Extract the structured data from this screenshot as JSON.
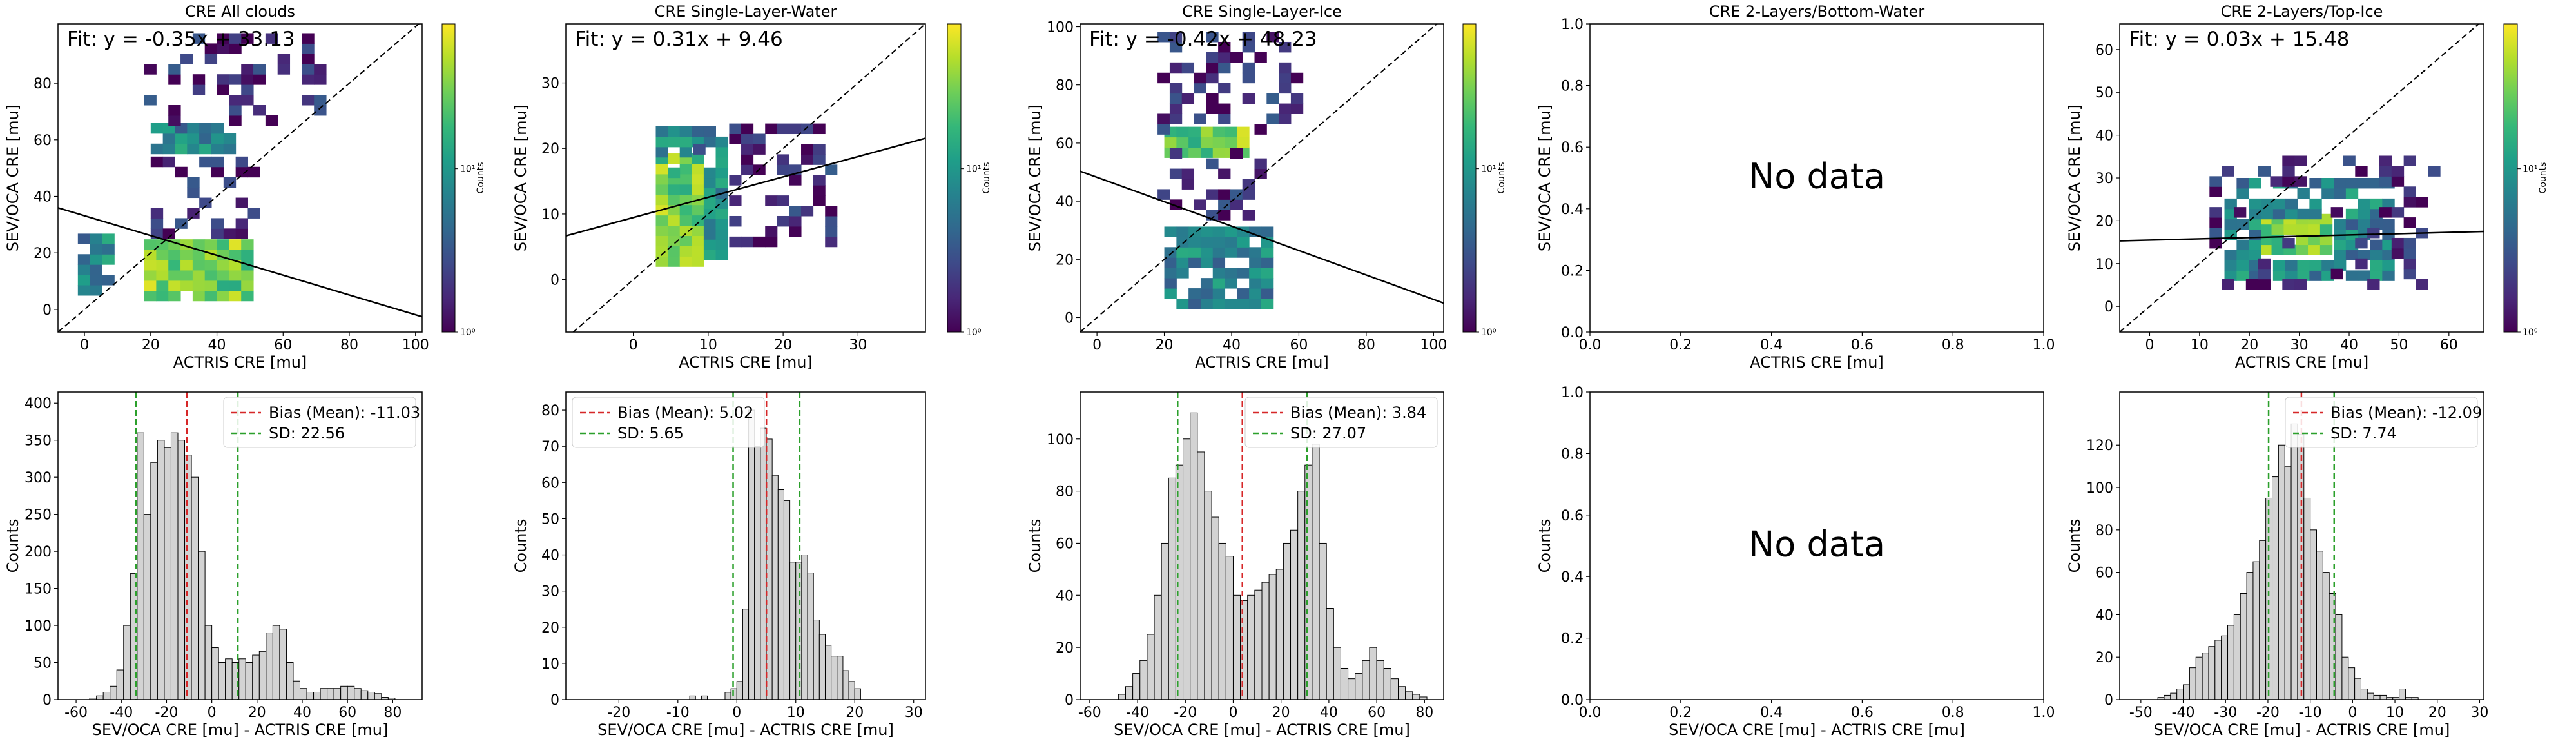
{
  "figure": {
    "labels": {
      "xlabel_scatter": "ACTRIS CRE [mu]",
      "ylabel_scatter": "SEV/OCA CRE [mu]",
      "xlabel_hist": "SEV/OCA CRE [mu] - ACTRIS CRE [mu]",
      "ylabel_hist": "Counts",
      "colorbar_label": "Counts",
      "no_data": "No data"
    },
    "colors": {
      "bar_fill": "#d3d3d3",
      "bar_edge": "#000000",
      "bias_line": "#d62728",
      "sd_line": "#2ca02c",
      "fit_line": "#000000",
      "diag_line": "#000000"
    }
  },
  "chart_data": [
    {
      "type": "heatmap",
      "title": "CRE All clouds",
      "fit_label": "Fit: y = -0.35x + 33.13",
      "fit": {
        "slope": -0.35,
        "intercept": 33.13
      },
      "xlim": [
        -8,
        102
      ],
      "ylim": [
        -8,
        101
      ],
      "xticks": [
        0,
        20,
        40,
        60,
        80,
        100
      ],
      "yticks": [
        0,
        20,
        40,
        60,
        80
      ],
      "colorbar": {
        "ticks": [
          "10⁰",
          "10¹"
        ],
        "label": "Counts",
        "scale": "log"
      },
      "dense_regions": [
        {
          "x": [
            18,
            50
          ],
          "y": [
            3,
            24
          ],
          "density": "high"
        },
        {
          "x": [
            20,
            45
          ],
          "y": [
            55,
            63
          ],
          "density": "medium"
        },
        {
          "x": [
            -2,
            8
          ],
          "y": [
            5,
            24
          ],
          "density": "medium"
        },
        {
          "x": [
            20,
            50
          ],
          "y": [
            25,
            55
          ],
          "density": "low"
        },
        {
          "x": [
            18,
            70
          ],
          "y": [
            65,
            95
          ],
          "density": "low"
        }
      ]
    },
    {
      "type": "heatmap",
      "title": "CRE Single-Layer-Water",
      "fit_label": "Fit: y = 0.31x + 9.46",
      "fit": {
        "slope": 0.31,
        "intercept": 9.46
      },
      "xlim": [
        -9,
        39
      ],
      "ylim": [
        -8,
        39
      ],
      "xticks": [
        0,
        10,
        20,
        30
      ],
      "yticks": [
        0,
        10,
        20,
        30
      ],
      "colorbar": {
        "ticks": [
          "10⁰",
          "10¹"
        ],
        "label": "Counts",
        "scale": "log"
      },
      "dense_regions": [
        {
          "x": [
            3,
            9
          ],
          "y": [
            2,
            18
          ],
          "density": "high"
        },
        {
          "x": [
            3,
            12
          ],
          "y": [
            3,
            23
          ],
          "density": "medium"
        },
        {
          "x": [
            8,
            26
          ],
          "y": [
            5,
            23
          ],
          "density": "low"
        }
      ]
    },
    {
      "type": "heatmap",
      "title": "CRE Single-Layer-Ice",
      "fit_label": "Fit: y = -0.42x + 48.23",
      "fit": {
        "slope": -0.42,
        "intercept": 48.23
      },
      "xlim": [
        -5,
        103
      ],
      "ylim": [
        -5,
        101
      ],
      "xticks": [
        0,
        20,
        40,
        60,
        80,
        100
      ],
      "yticks": [
        0,
        20,
        40,
        60,
        80,
        100
      ],
      "colorbar": {
        "ticks": [
          "10⁰",
          "10¹"
        ],
        "label": "Counts",
        "scale": "log"
      },
      "dense_regions": [
        {
          "x": [
            20,
            50
          ],
          "y": [
            3,
            30
          ],
          "density": "medium"
        },
        {
          "x": [
            20,
            45
          ],
          "y": [
            55,
            63
          ],
          "density": "high"
        },
        {
          "x": [
            18,
            50
          ],
          "y": [
            30,
            55
          ],
          "density": "low"
        },
        {
          "x": [
            18,
            60
          ],
          "y": [
            63,
            95
          ],
          "density": "low"
        }
      ]
    },
    {
      "type": "scatter",
      "title": "CRE 2-Layers/Bottom-Water",
      "empty": true,
      "xlim": [
        0,
        1
      ],
      "ylim": [
        0,
        1
      ],
      "xticks": [
        "0.0",
        "0.2",
        "0.4",
        "0.6",
        "0.8",
        "1.0"
      ],
      "yticks": [
        "0.0",
        "0.2",
        "0.4",
        "0.6",
        "0.8",
        "1.0"
      ],
      "annotation": "No data"
    },
    {
      "type": "heatmap",
      "title": "CRE 2-Layers/Top-Ice",
      "fit_label": "Fit: y = 0.03x + 15.48",
      "fit": {
        "slope": 0.03,
        "intercept": 15.48
      },
      "xlim": [
        -6,
        67
      ],
      "ylim": [
        -6,
        66
      ],
      "xticks": [
        0,
        10,
        20,
        30,
        40,
        50,
        60
      ],
      "yticks": [
        0,
        10,
        20,
        30,
        40,
        50,
        60
      ],
      "colorbar": {
        "ticks": [
          "10⁰",
          "10¹"
        ],
        "label": "Counts",
        "scale": "log"
      },
      "dense_regions": [
        {
          "x": [
            22,
            36
          ],
          "y": [
            12,
            20
          ],
          "density": "high"
        },
        {
          "x": [
            15,
            48
          ],
          "y": [
            6,
            28
          ],
          "density": "medium"
        },
        {
          "x": [
            12,
            56
          ],
          "y": [
            4,
            33
          ],
          "density": "low"
        }
      ]
    },
    {
      "type": "bar",
      "title": "",
      "xlim": [
        -68,
        93
      ],
      "ylim": [
        0,
        415
      ],
      "xticks": [
        -60,
        -40,
        -20,
        0,
        20,
        40,
        60,
        80
      ],
      "yticks": [
        0,
        50,
        100,
        150,
        200,
        250,
        300,
        350,
        400
      ],
      "bin_start": -54,
      "bin_width": 3,
      "values": [
        2,
        5,
        10,
        18,
        40,
        100,
        170,
        360,
        250,
        320,
        350,
        340,
        360,
        350,
        330,
        300,
        200,
        100,
        70,
        50,
        55,
        50,
        55,
        50,
        60,
        65,
        90,
        100,
        95,
        50,
        25,
        15,
        10,
        10,
        15,
        15,
        15,
        18,
        18,
        15,
        12,
        10,
        8,
        3,
        2
      ],
      "legend": [
        {
          "label": "Bias (Mean): -11.03",
          "value": -11.03
        },
        {
          "label": "SD: 22.56",
          "lower": -33.59,
          "upper": 11.53
        }
      ],
      "legend_position": "top-right"
    },
    {
      "type": "bar",
      "title": "",
      "xlim": [
        -29,
        32
      ],
      "ylim": [
        0,
        85
      ],
      "xticks": [
        -20,
        -10,
        0,
        10,
        20,
        30
      ],
      "yticks": [
        0,
        10,
        20,
        30,
        40,
        50,
        60,
        70,
        80
      ],
      "bin_start": -8,
      "bin_width": 1,
      "values": [
        1,
        0,
        1,
        0,
        0,
        0,
        2,
        3,
        5,
        25,
        80,
        70,
        75,
        72,
        62,
        58,
        55,
        38,
        38,
        40,
        35,
        22,
        18,
        15,
        12,
        12,
        8,
        5,
        3
      ],
      "legend": [
        {
          "label": "Bias (Mean): 5.02",
          "value": 5.02
        },
        {
          "label": "SD: 5.65",
          "lower": -0.63,
          "upper": 10.67
        }
      ],
      "legend_position": "top-left"
    },
    {
      "type": "bar",
      "title": "",
      "xlim": [
        -64,
        88
      ],
      "ylim": [
        0,
        118
      ],
      "xticks": [
        -60,
        -40,
        -20,
        0,
        20,
        40,
        60,
        80
      ],
      "yticks": [
        0,
        20,
        40,
        60,
        80,
        100
      ],
      "bin_start": -48,
      "bin_width": 3,
      "values": [
        2,
        5,
        10,
        15,
        25,
        40,
        60,
        85,
        90,
        100,
        110,
        95,
        80,
        70,
        60,
        55,
        40,
        38,
        40,
        42,
        45,
        48,
        50,
        60,
        65,
        80,
        90,
        98,
        60,
        35,
        20,
        12,
        8,
        10,
        15,
        20,
        15,
        12,
        8,
        5,
        3,
        2,
        1
      ],
      "legend": [
        {
          "label": "Bias (Mean): 3.84",
          "value": 3.84
        },
        {
          "label": "SD: 27.07",
          "lower": -23.23,
          "upper": 30.91
        }
      ],
      "legend_position": "top-right"
    },
    {
      "type": "bar",
      "title": "",
      "empty": true,
      "xlim": [
        0,
        1
      ],
      "ylim": [
        0,
        1
      ],
      "xticks": [
        "0.0",
        "0.2",
        "0.4",
        "0.6",
        "0.8",
        "1.0"
      ],
      "yticks": [
        "0.0",
        "0.2",
        "0.4",
        "0.6",
        "0.8",
        "1.0"
      ],
      "annotation": "No data"
    },
    {
      "type": "bar",
      "title": "",
      "xlim": [
        -55,
        31
      ],
      "ylim": [
        0,
        145
      ],
      "xticks": [
        -50,
        -40,
        -30,
        -20,
        -10,
        0,
        10,
        20,
        30
      ],
      "yticks": [
        0,
        20,
        40,
        60,
        80,
        100,
        120
      ],
      "bin_start": -46,
      "bin_width": 1.5,
      "values": [
        1,
        2,
        3,
        5,
        7,
        15,
        20,
        22,
        25,
        28,
        30,
        35,
        40,
        50,
        60,
        65,
        75,
        95,
        105,
        120,
        110,
        130,
        125,
        95,
        80,
        70,
        60,
        50,
        40,
        20,
        15,
        10,
        5,
        3,
        2,
        2,
        1,
        1,
        5,
        1,
        1
      ],
      "legend": [
        {
          "label": "Bias (Mean): -12.09",
          "value": -12.09
        },
        {
          "label": "SD: 7.74",
          "lower": -19.83,
          "upper": -4.35
        }
      ],
      "legend_position": "top-right"
    }
  ]
}
